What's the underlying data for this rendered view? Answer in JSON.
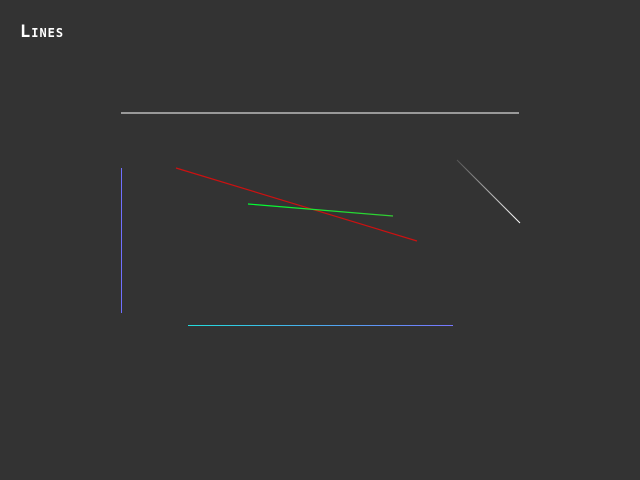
{
  "title": "Lines",
  "colors": {
    "background": "#333333",
    "title": "#ffffff"
  },
  "lines": [
    {
      "name": "top-white-line",
      "color": "#ffffff"
    },
    {
      "name": "diagonal-gray-line",
      "color": "#e6e6e6",
      "gradient": [
        "#555555",
        "#ffffff"
      ]
    },
    {
      "name": "vertical-blue-line",
      "color": "#7070ff"
    },
    {
      "name": "red-line",
      "color": "#cc1111"
    },
    {
      "name": "green-line",
      "color": "#22cc22",
      "gradient": [
        "#00ff33",
        "#33cc33"
      ]
    },
    {
      "name": "bottom-cyan-blue-line",
      "color": "#40c0e0",
      "gradient": [
        "#22dddd",
        "#7777ff"
      ]
    }
  ]
}
